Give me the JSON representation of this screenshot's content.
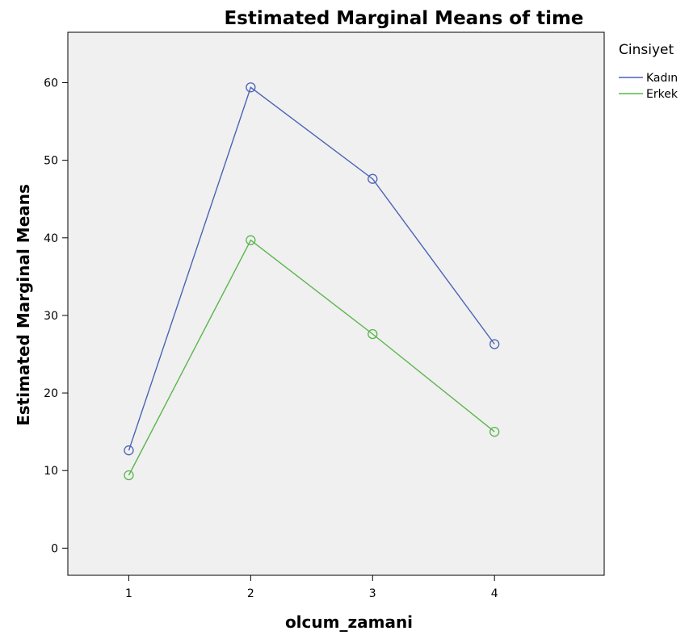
{
  "chart_data": {
    "type": "line",
    "title": "Estimated Marginal Means of time",
    "xlabel": "olcum_zamani",
    "ylabel": "Estimated Marginal Means",
    "x": [
      1,
      2,
      3,
      4
    ],
    "x_tick_labels": [
      "1",
      "2",
      "3",
      "4"
    ],
    "y_ticks": [
      0,
      10,
      20,
      30,
      40,
      50,
      60
    ],
    "ylim": [
      -3.5,
      66.5
    ],
    "grid": false,
    "legend": {
      "title": "Cinsiyet",
      "placement": "right"
    },
    "series": [
      {
        "name": "Kadın",
        "color": "#4a63b5",
        "values": [
          12.6,
          59.4,
          47.6,
          26.3
        ]
      },
      {
        "name": "Erkek",
        "color": "#5ab54c",
        "values": [
          9.4,
          39.7,
          27.6,
          15.0
        ]
      }
    ]
  }
}
